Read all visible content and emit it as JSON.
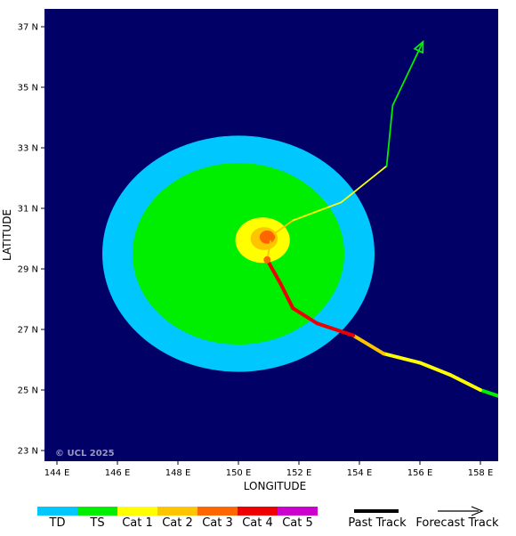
{
  "map": {
    "x_axis_label": "LONGITUDE",
    "y_axis_label": "LATITUDE",
    "copyright": "© UCL 2025",
    "background_color": "#000066",
    "lon_ticks": [
      "144 E",
      "146 E",
      "148 E",
      "150 E",
      "152 E",
      "154 E",
      "156 E",
      "158 E"
    ],
    "lat_ticks": [
      "37 N",
      "35 N",
      "33 N",
      "31 N",
      "29 N",
      "27 N",
      "25 N",
      "23 N"
    ],
    "wind_field": {
      "center": {
        "lon": 150.0,
        "lat": 29.5
      },
      "rings": [
        {
          "category": "TD",
          "color": "#00c8ff",
          "radius_lon": 4.5,
          "radius_lat": 3.9
        },
        {
          "category": "TS",
          "color": "#00ee00",
          "radius_lon": 3.5,
          "radius_lat": 3.0
        },
        {
          "category": "Cat 1",
          "color": "#ffff00",
          "radius_lon": 0.9,
          "radius_lat": 0.75,
          "center": {
            "lon": 150.8,
            "lat": 29.95
          }
        },
        {
          "category": "Cat 2",
          "color": "#ffc400",
          "radius_lon": 0.45,
          "radius_lat": 0.38,
          "center": {
            "lon": 150.85,
            "lat": 30.0
          }
        },
        {
          "category": "Cat 3",
          "color": "#ff6600",
          "radius_lon": 0.25,
          "radius_lat": 0.22,
          "center": {
            "lon": 150.95,
            "lat": 30.05
          }
        }
      ]
    },
    "past_track": [
      {
        "lon": 158.6,
        "lat": 24.8,
        "category": "TS"
      },
      {
        "lon": 158.0,
        "lat": 25.0,
        "category": "TS"
      },
      {
        "lon": 157.0,
        "lat": 25.5,
        "category": "Cat 1"
      },
      {
        "lon": 156.0,
        "lat": 25.9,
        "category": "Cat 1"
      },
      {
        "lon": 154.8,
        "lat": 26.2,
        "category": "Cat 1"
      },
      {
        "lon": 153.8,
        "lat": 26.8,
        "category": "Cat 2"
      },
      {
        "lon": 152.6,
        "lat": 27.2,
        "category": "Cat 4"
      },
      {
        "lon": 151.8,
        "lat": 27.7,
        "category": "Cat 4"
      },
      {
        "lon": 151.4,
        "lat": 28.5,
        "category": "Cat 4"
      },
      {
        "lon": 150.95,
        "lat": 29.3,
        "category": "Cat 4"
      }
    ],
    "forecast_track": [
      {
        "lon": 150.95,
        "lat": 29.3,
        "category": "Cat 2"
      },
      {
        "lon": 151.1,
        "lat": 30.1,
        "category": "Cat 2"
      },
      {
        "lon": 151.8,
        "lat": 30.6,
        "category": "Cat 2"
      },
      {
        "lon": 152.6,
        "lat": 30.9,
        "category": "Cat 1"
      },
      {
        "lon": 153.4,
        "lat": 31.2,
        "category": "Cat 1"
      },
      {
        "lon": 154.9,
        "lat": 32.4,
        "category": "Cat 1"
      },
      {
        "lon": 155.1,
        "lat": 34.4,
        "category": "TS"
      },
      {
        "lon": 156.1,
        "lat": 36.5,
        "category": "TS"
      }
    ],
    "markers": [
      {
        "lon": 150.95,
        "lat": 29.3,
        "color": "#ff6600"
      },
      {
        "lon": 151.1,
        "lat": 30.05,
        "color": "#ff6600"
      }
    ]
  },
  "legend": {
    "categories": [
      {
        "label": "TD",
        "color": "#00c8ff"
      },
      {
        "label": "TS",
        "color": "#00ee00"
      },
      {
        "label": "Cat 1",
        "color": "#ffff00"
      },
      {
        "label": "Cat 2",
        "color": "#ffc400"
      },
      {
        "label": "Cat 3",
        "color": "#ff6600"
      },
      {
        "label": "Cat 4",
        "color": "#ee0000"
      },
      {
        "label": "Cat 5",
        "color": "#cc00cc"
      }
    ],
    "past_track_label": "Past Track",
    "forecast_track_label": "Forecast Track"
  }
}
